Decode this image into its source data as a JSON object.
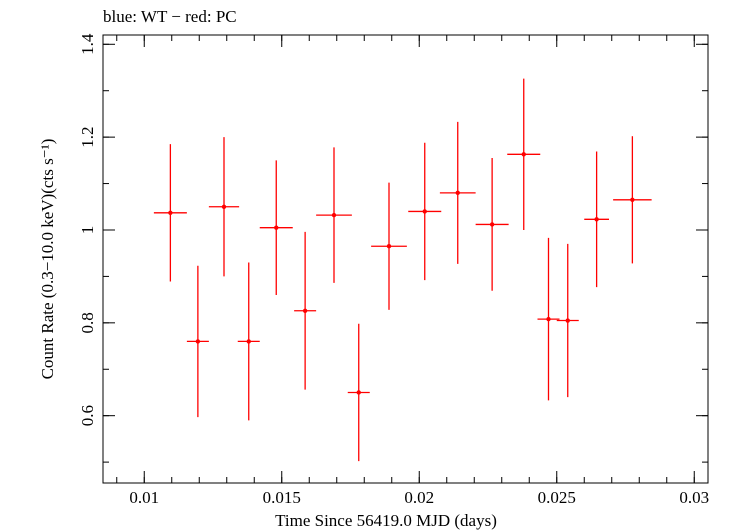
{
  "chart_data": {
    "type": "scatter",
    "title": "blue: WT − red: PC",
    "xlabel": "Time Since 56419.0 MJD (days)",
    "ylabel": "Count Rate (0.3−10.0 keV)(cts s⁻¹)",
    "xlim": [
      0.0085,
      0.0305
    ],
    "ylim": [
      0.455,
      1.42
    ],
    "x_ticks": [
      0.01,
      0.015,
      0.02,
      0.025,
      0.03
    ],
    "x_tick_labels": [
      "0.01",
      "0.015",
      "0.02",
      "0.025",
      "0.03"
    ],
    "y_ticks": [
      0.6,
      0.8,
      1.0,
      1.2,
      1.4
    ],
    "y_tick_labels": [
      "0.6",
      "0.8",
      "1",
      "1.2",
      "1.4"
    ],
    "grid": false,
    "series": [
      {
        "color": "#ff0000",
        "points": [
          {
            "x": 0.01095,
            "xerr": 0.0006,
            "y": 1.037,
            "yerr": 0.148
          },
          {
            "x": 0.01195,
            "xerr": 0.0004,
            "y": 0.76,
            "yerr": 0.163
          },
          {
            "x": 0.0129,
            "xerr": 0.00055,
            "y": 1.05,
            "yerr": 0.15
          },
          {
            "x": 0.0138,
            "xerr": 0.0004,
            "y": 0.76,
            "yerr": 0.17
          },
          {
            "x": 0.0148,
            "xerr": 0.0006,
            "y": 1.005,
            "yerr": 0.145
          },
          {
            "x": 0.01585,
            "xerr": 0.0004,
            "y": 0.826,
            "yerr": 0.17
          },
          {
            "x": 0.0169,
            "xerr": 0.00065,
            "y": 1.032,
            "yerr": 0.146
          },
          {
            "x": 0.0178,
            "xerr": 0.0004,
            "y": 0.65,
            "yerr": 0.148
          },
          {
            "x": 0.0189,
            "xerr": 0.00065,
            "y": 0.965,
            "yerr": 0.137
          },
          {
            "x": 0.0202,
            "xerr": 0.0006,
            "y": 1.04,
            "yerr": 0.148
          },
          {
            "x": 0.0214,
            "xerr": 0.00065,
            "y": 1.08,
            "yerr": 0.153
          },
          {
            "x": 0.02265,
            "xerr": 0.0006,
            "y": 1.012,
            "yerr": 0.143
          },
          {
            "x": 0.0238,
            "xerr": 0.0006,
            "y": 1.163,
            "yerr": 0.163
          },
          {
            "x": 0.0247,
            "xerr": 0.0004,
            "y": 0.808,
            "yerr": 0.175
          },
          {
            "x": 0.0254,
            "xerr": 0.0004,
            "y": 0.805,
            "yerr": 0.165
          },
          {
            "x": 0.02645,
            "xerr": 0.00045,
            "y": 1.023,
            "yerr": 0.146
          },
          {
            "x": 0.02775,
            "xerr": 0.0007,
            "y": 1.065,
            "yerr": 0.137
          }
        ]
      }
    ]
  }
}
